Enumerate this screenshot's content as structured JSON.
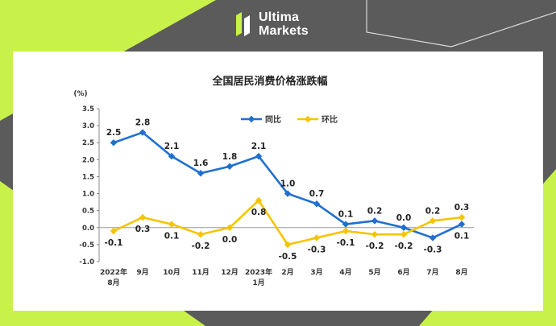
{
  "brand": {
    "line1": "Ultima",
    "line2": "Markets",
    "accent": "#c8f24a",
    "logo_icon": "ultima-logo-icon"
  },
  "chart_data": {
    "type": "line",
    "title": "全国居民消费价格涨跌幅",
    "ylabel": "(%)",
    "ylim": [
      -1.0,
      3.5
    ],
    "yticks": [
      "3.5",
      "3.0",
      "2.5",
      "2.0",
      "1.5",
      "1.0",
      "0.5",
      "0.0",
      "-0.5",
      "-1.0"
    ],
    "categories": [
      "2022年|8月",
      "9月",
      "10月",
      "11月",
      "12月",
      "2023年|1月",
      "2月",
      "3月",
      "4月",
      "5月",
      "6月",
      "7月",
      "8月"
    ],
    "legend_position": "top-center",
    "series": [
      {
        "name": "同比",
        "color": "#1f6fd1",
        "values": [
          2.5,
          2.8,
          2.1,
          1.6,
          1.8,
          2.1,
          1.0,
          0.7,
          0.1,
          0.2,
          0.0,
          -0.3,
          0.1
        ],
        "labels": [
          "2.5",
          "2.8",
          "2.1",
          "1.6",
          "1.8",
          "2.1",
          "1.0",
          "0.7",
          "0.1",
          "0.2",
          "0.0",
          "-0.3",
          "0.1"
        ]
      },
      {
        "name": "环比",
        "color": "#f5c400",
        "values": [
          -0.1,
          0.3,
          0.1,
          -0.2,
          0.0,
          0.8,
          -0.5,
          -0.3,
          -0.1,
          -0.2,
          -0.2,
          0.2,
          0.3
        ],
        "labels": [
          "-0.1",
          "0.3",
          "0.1",
          "-0.2",
          "0.0",
          "0.8",
          "-0.5",
          "-0.3",
          "-0.1",
          "-0.2",
          "-0.2",
          "0.2",
          "0.3"
        ]
      }
    ]
  }
}
